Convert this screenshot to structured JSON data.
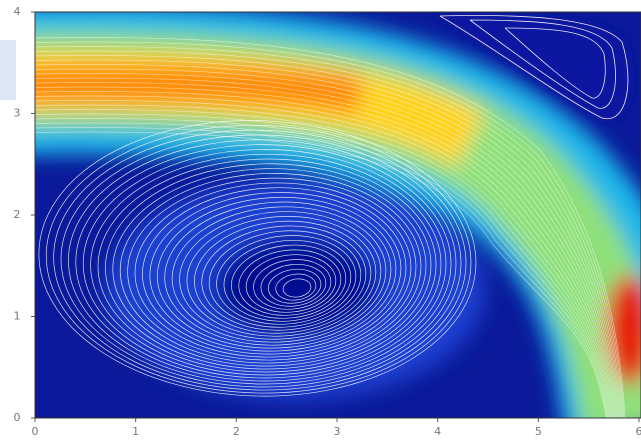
{
  "chart_data": {
    "type": "streamplot",
    "xlim": [
      0,
      6
    ],
    "ylim": [
      0,
      4
    ],
    "xticks": [
      0,
      1,
      2,
      3,
      4,
      5,
      6
    ],
    "yticks": [
      0,
      1,
      2,
      3,
      4
    ]
  }
}
